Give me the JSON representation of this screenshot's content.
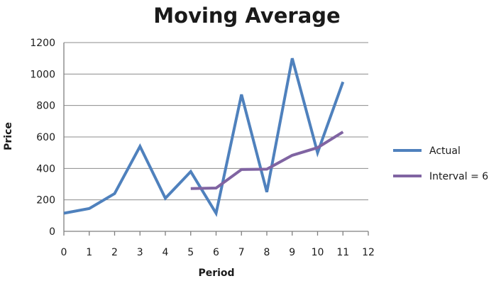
{
  "chart_data": {
    "type": "line",
    "title": "Moving Average",
    "xlabel": "Period",
    "ylabel": "Price",
    "xlim": [
      0,
      12
    ],
    "ylim": [
      0,
      1200
    ],
    "x_ticks": [
      "0",
      "1",
      "2",
      "3",
      "4",
      "5",
      "6",
      "7",
      "8",
      "9",
      "10",
      "11",
      "12"
    ],
    "y_ticks": [
      "0",
      "200",
      "400",
      "600",
      "800",
      "1000",
      "1200"
    ],
    "grid": "horizontal",
    "legend_position": "right",
    "series": [
      {
        "name": "Actual",
        "color": "#4f81bd",
        "x": [
          0,
          1,
          2,
          3,
          4,
          5,
          6,
          7,
          8,
          9,
          10,
          11
        ],
        "y": [
          115,
          145,
          240,
          540,
          210,
          380,
          115,
          870,
          250,
          1100,
          500,
          950
        ]
      },
      {
        "name": "Interval = 6",
        "color": "#8064a2",
        "x": [
          5,
          6,
          7,
          8,
          9,
          10,
          11
        ],
        "y": [
          272,
          275,
          393,
          395,
          483,
          532,
          632
        ]
      }
    ]
  }
}
